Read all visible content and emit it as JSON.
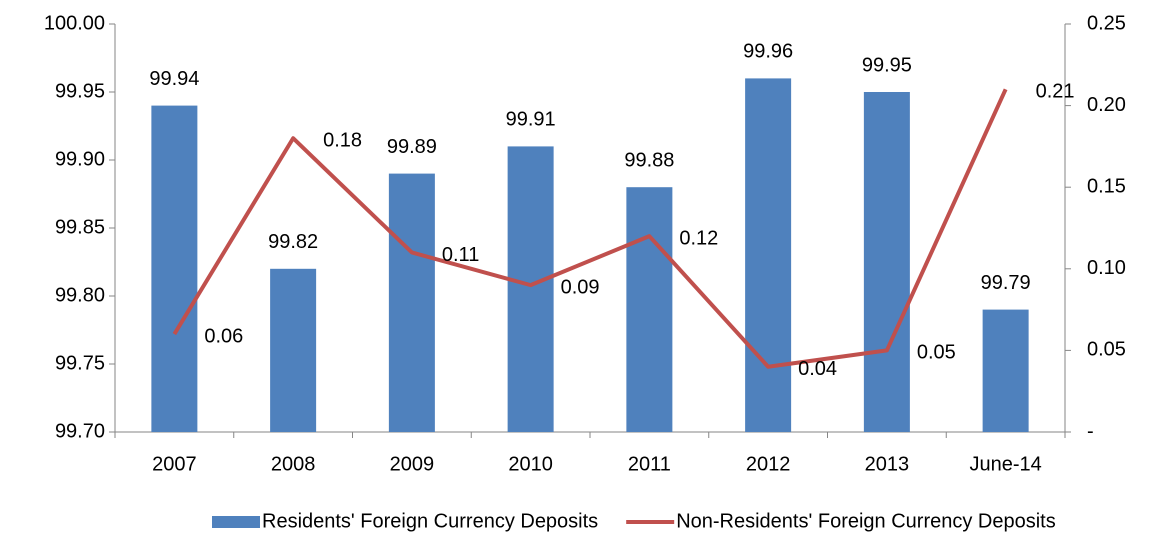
{
  "chart_data": {
    "type": "bar",
    "categories": [
      "2007",
      "2008",
      "2009",
      "2010",
      "2011",
      "2012",
      "2013",
      "June-14"
    ],
    "series": [
      {
        "name": "Residents' Foreign Currency Deposits",
        "type": "bar",
        "color": "#4f81bd",
        "values": [
          99.94,
          99.82,
          99.89,
          99.91,
          99.88,
          99.96,
          99.95,
          99.79
        ]
      },
      {
        "name": "Non-Residents' Foreign Currency Deposits",
        "type": "line",
        "axis": "y2",
        "color": "#c0504d",
        "values": [
          0.06,
          0.18,
          0.11,
          0.09,
          0.12,
          0.04,
          0.05,
          0.21
        ]
      }
    ],
    "ylim": [
      99.7,
      100
    ],
    "yticks": [
      {
        "value": 100,
        "label": "100.00"
      },
      99.95,
      {
        "value": 99.9,
        "label": "99.90"
      },
      99.85,
      {
        "value": 99.8,
        "label": "99.80"
      },
      99.75,
      {
        "value": 99.7,
        "label": "99.70"
      }
    ],
    "y2lim": [
      0,
      0.25
    ],
    "y2ticks": [
      0.25,
      {
        "value": 0.2,
        "label": "0.20"
      },
      0.15,
      {
        "value": 0.1,
        "label": "0.10"
      },
      0.05,
      {
        "value": 0,
        "label": "-"
      }
    ],
    "grid": false,
    "legend": "bottom"
  }
}
